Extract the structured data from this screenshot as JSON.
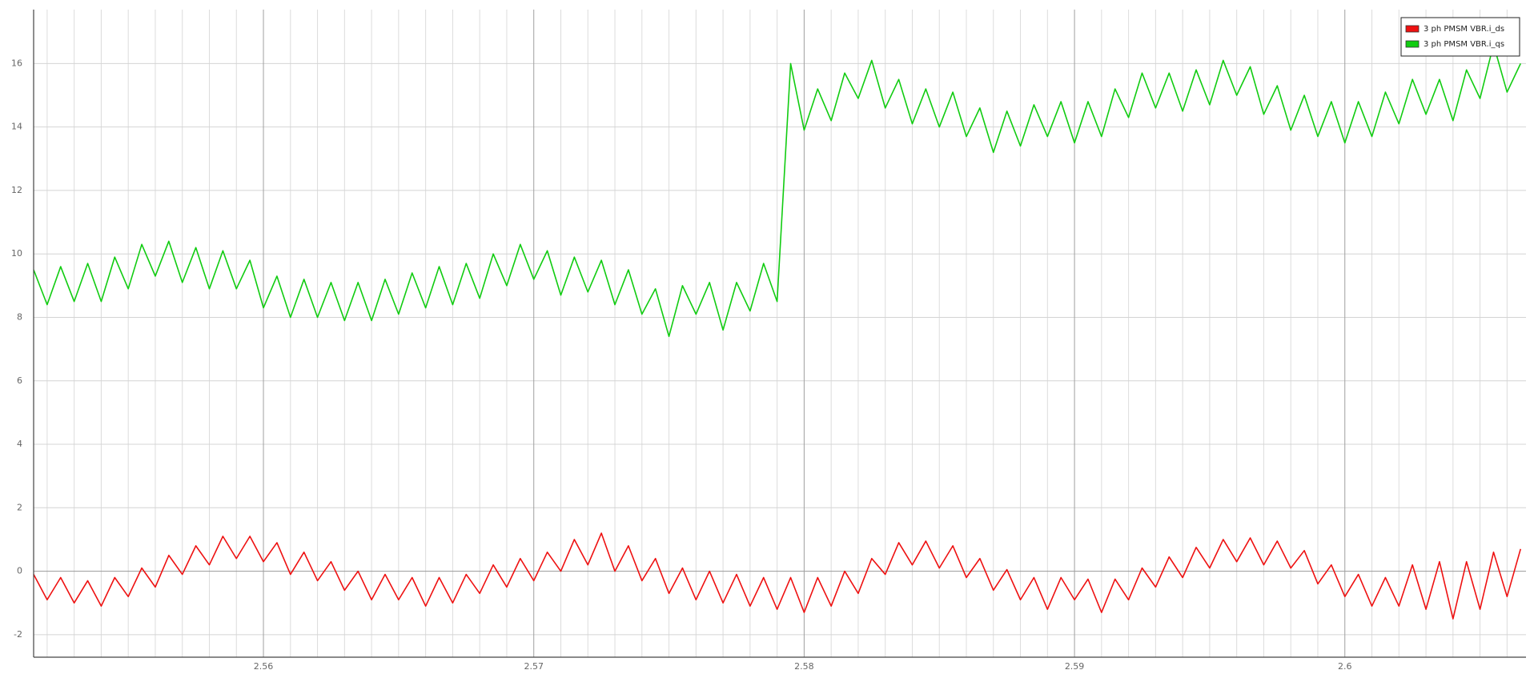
{
  "chart_data": {
    "type": "line",
    "x": [
      2.5515,
      2.552,
      2.5525,
      2.553,
      2.5535,
      2.554,
      2.5545,
      2.555,
      2.5555,
      2.556,
      2.5565,
      2.557,
      2.5575,
      2.558,
      2.5585,
      2.559,
      2.5595,
      2.56,
      2.5605,
      2.561,
      2.5615,
      2.562,
      2.5625,
      2.563,
      2.5635,
      2.564,
      2.5645,
      2.565,
      2.5655,
      2.566,
      2.5665,
      2.567,
      2.5675,
      2.568,
      2.5685,
      2.569,
      2.5695,
      2.57,
      2.5705,
      2.571,
      2.5715,
      2.572,
      2.5725,
      2.573,
      2.5735,
      2.574,
      2.5745,
      2.575,
      2.5755,
      2.576,
      2.5765,
      2.577,
      2.5775,
      2.578,
      2.5785,
      2.579,
      2.5795,
      2.58,
      2.5805,
      2.581,
      2.5815,
      2.582,
      2.5825,
      2.583,
      2.5835,
      2.584,
      2.5845,
      2.585,
      2.5855,
      2.586,
      2.5865,
      2.587,
      2.5875,
      2.588,
      2.5885,
      2.589,
      2.5895,
      2.59,
      2.5905,
      2.591,
      2.5915,
      2.592,
      2.5925,
      2.593,
      2.5935,
      2.594,
      2.5945,
      2.595,
      2.5955,
      2.596,
      2.5965,
      2.597,
      2.5975,
      2.598,
      2.5985,
      2.599,
      2.5995,
      2.6,
      2.6005,
      2.601,
      2.6015,
      2.602,
      2.6025,
      2.603,
      2.6035,
      2.604,
      2.6045,
      2.605,
      2.6055,
      2.606,
      2.6065
    ],
    "series": [
      {
        "name": "3 ph PMSM VBR.i_ds",
        "color": "#ee1111",
        "values": [
          -0.1,
          -0.9,
          -0.2,
          -1.0,
          -0.3,
          -1.1,
          -0.2,
          -0.8,
          0.1,
          -0.5,
          0.5,
          -0.1,
          0.8,
          0.2,
          1.1,
          0.4,
          1.1,
          0.3,
          0.9,
          -0.1,
          0.6,
          -0.3,
          0.3,
          -0.6,
          0.0,
          -0.9,
          -0.1,
          -0.9,
          -0.2,
          -1.1,
          -0.2,
          -1.0,
          -0.1,
          -0.7,
          0.2,
          -0.5,
          0.4,
          -0.3,
          0.6,
          0.0,
          1.0,
          0.2,
          1.2,
          0.0,
          0.8,
          -0.3,
          0.4,
          -0.7,
          0.1,
          -0.9,
          0.0,
          -1.0,
          -0.1,
          -1.1,
          -0.2,
          -1.2,
          -0.2,
          -1.3,
          -0.2,
          -1.1,
          0.0,
          -0.7,
          0.4,
          -0.1,
          0.9,
          0.2,
          0.95,
          0.1,
          0.8,
          -0.2,
          0.4,
          -0.6,
          0.05,
          -0.9,
          -0.2,
          -1.2,
          -0.2,
          -0.9,
          -0.25,
          -1.3,
          -0.25,
          -0.9,
          0.1,
          -0.5,
          0.45,
          -0.2,
          0.75,
          0.1,
          1.0,
          0.3,
          1.05,
          0.2,
          0.95,
          0.1,
          0.65,
          -0.4,
          0.2,
          -0.8,
          -0.1,
          -1.1,
          -0.2,
          -1.1,
          0.2,
          -1.2,
          0.3,
          -1.5,
          0.3,
          -1.2,
          0.6,
          -0.8,
          0.7
        ]
      },
      {
        "name": "3 ph PMSM VBR.i_qs",
        "color": "#11cc11",
        "values": [
          9.5,
          8.4,
          9.6,
          8.5,
          9.7,
          8.5,
          9.9,
          8.9,
          10.3,
          9.3,
          10.4,
          9.1,
          10.2,
          8.9,
          10.1,
          8.9,
          9.8,
          8.3,
          9.3,
          8.0,
          9.2,
          8.0,
          9.1,
          7.9,
          9.1,
          7.9,
          9.2,
          8.1,
          9.4,
          8.3,
          9.6,
          8.4,
          9.7,
          8.6,
          10.0,
          9.0,
          10.3,
          9.2,
          10.1,
          8.7,
          9.9,
          8.8,
          9.8,
          8.4,
          9.5,
          8.1,
          8.9,
          7.4,
          9.0,
          8.1,
          9.1,
          7.6,
          9.1,
          8.2,
          9.7,
          8.5,
          16.0,
          13.9,
          15.2,
          14.2,
          15.7,
          14.9,
          16.1,
          14.6,
          15.5,
          14.1,
          15.2,
          14.0,
          15.1,
          13.7,
          14.6,
          13.2,
          14.5,
          13.4,
          14.7,
          13.7,
          14.8,
          13.5,
          14.8,
          13.7,
          15.2,
          14.3,
          15.7,
          14.6,
          15.7,
          14.5,
          15.8,
          14.7,
          16.1,
          15.0,
          15.9,
          14.4,
          15.3,
          13.9,
          15.0,
          13.7,
          14.8,
          13.5,
          14.8,
          13.7,
          15.1,
          14.1,
          15.5,
          14.4,
          15.5,
          14.2,
          15.8,
          14.9,
          16.6,
          15.1,
          16.0
        ]
      }
    ],
    "xlim": [
      2.5515,
      2.6067
    ],
    "ylim": [
      -2.71,
      17.7
    ],
    "xticks": [
      2.56,
      2.57,
      2.58,
      2.59,
      2.6
    ],
    "xminorticks": [
      2.552,
      2.553,
      2.554,
      2.555,
      2.556,
      2.557,
      2.558,
      2.559,
      2.561,
      2.562,
      2.563,
      2.564,
      2.565,
      2.566,
      2.567,
      2.568,
      2.569,
      2.571,
      2.572,
      2.573,
      2.574,
      2.575,
      2.576,
      2.577,
      2.578,
      2.579,
      2.581,
      2.582,
      2.583,
      2.584,
      2.585,
      2.586,
      2.587,
      2.588,
      2.589,
      2.591,
      2.592,
      2.593,
      2.594,
      2.595,
      2.596,
      2.597,
      2.598,
      2.599,
      2.601,
      2.602,
      2.603,
      2.604,
      2.605,
      2.606
    ],
    "yticks": [
      -2,
      0,
      2,
      4,
      6,
      8,
      10,
      12,
      14,
      16
    ],
    "grid": true,
    "legend": "top-right"
  }
}
